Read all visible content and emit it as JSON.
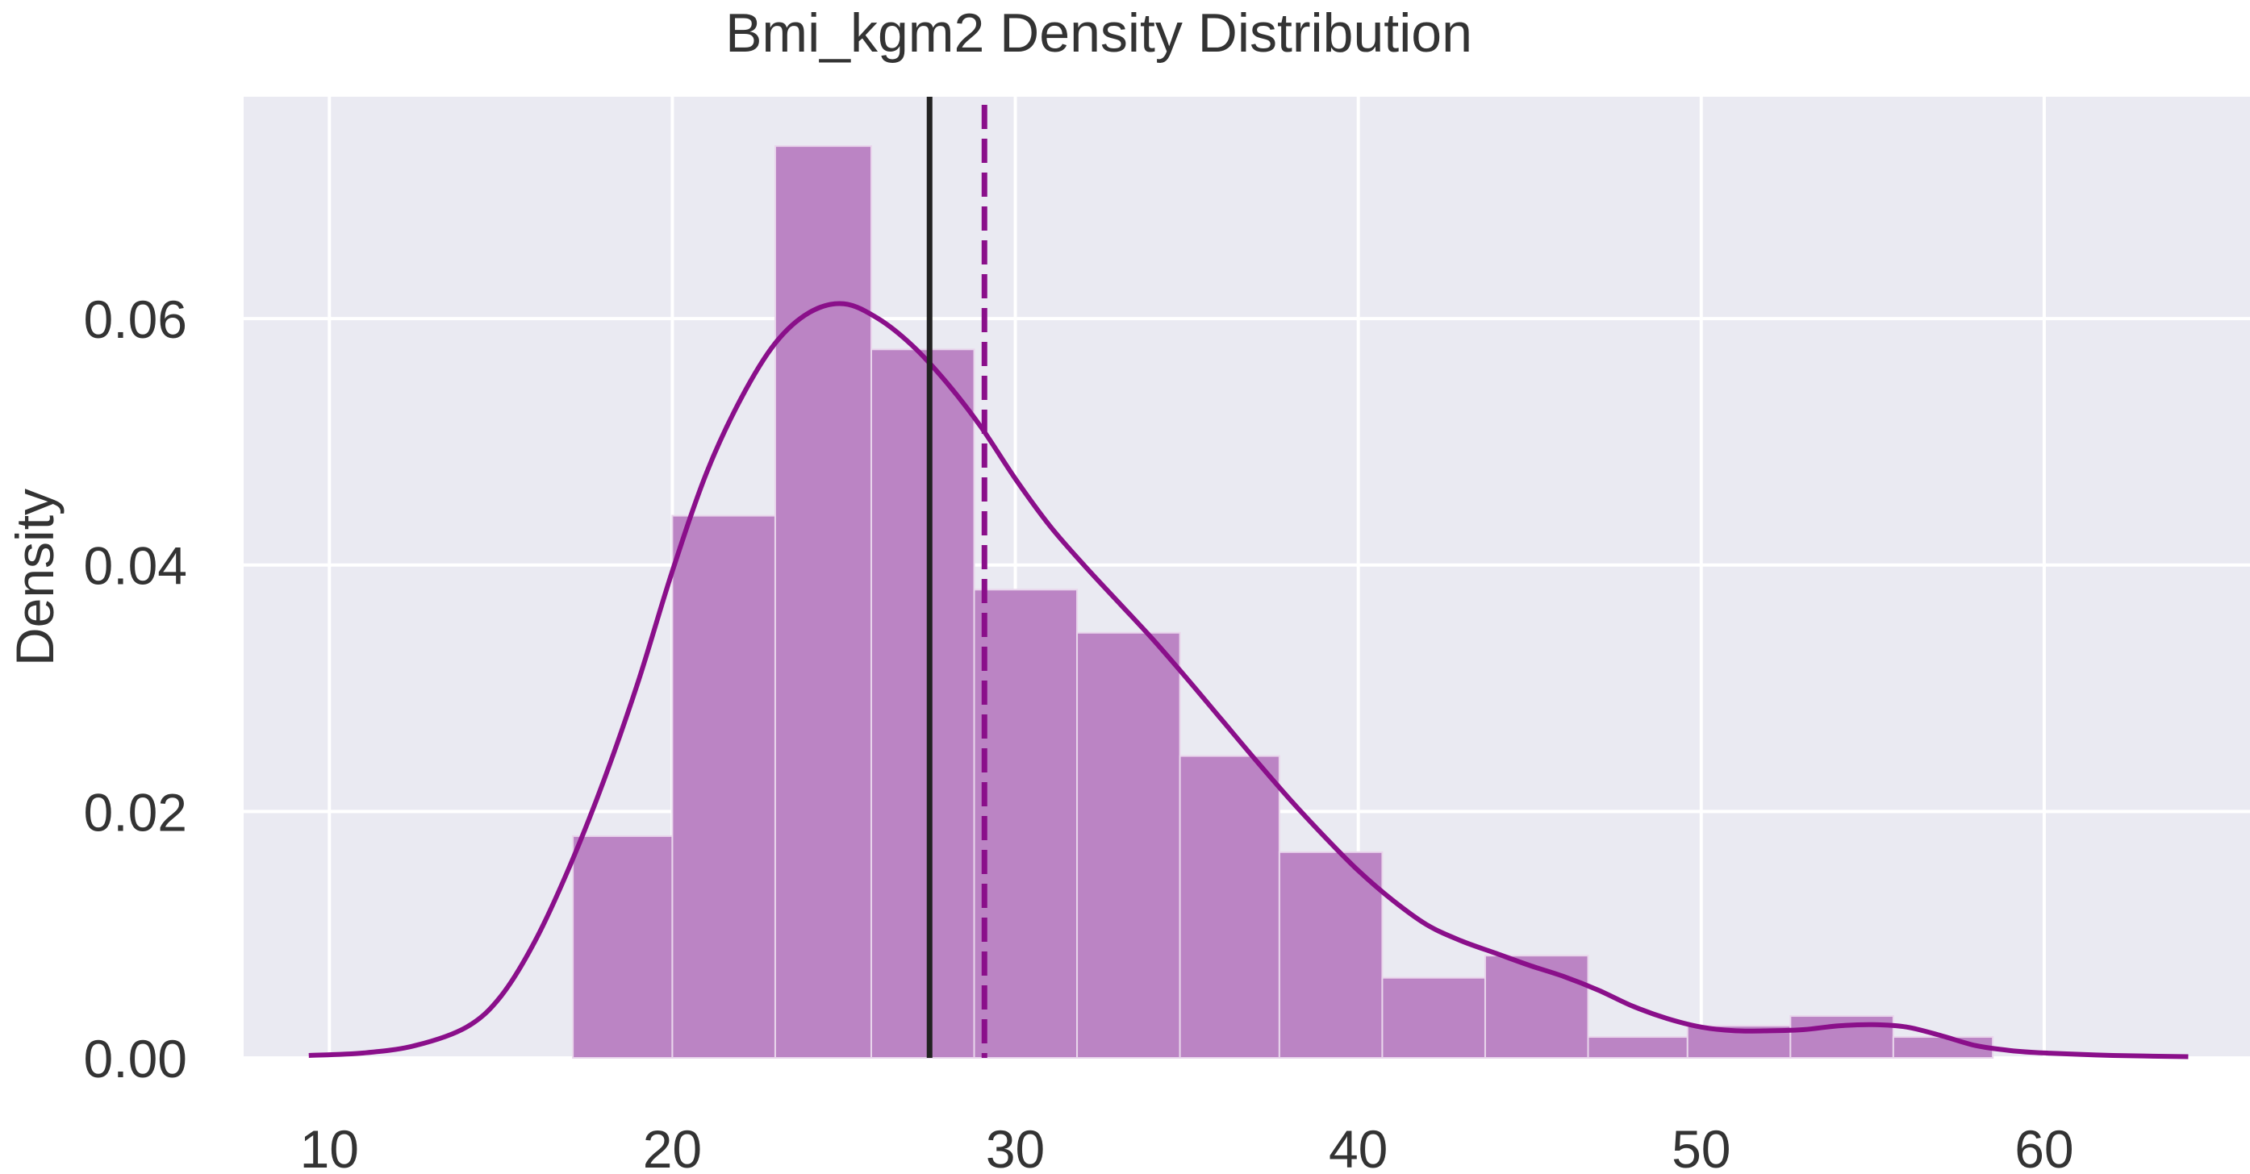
{
  "chart_data": {
    "type": "bar",
    "title": "Bmi_kgm2 Density Distribution",
    "xlabel": "",
    "ylabel": "Density",
    "xlim": [
      7.5,
      66
    ],
    "ylim": [
      0,
      0.078
    ],
    "xticks": [
      10,
      20,
      30,
      40,
      50,
      60
    ],
    "xtick_labels": [
      "10",
      "20",
      "30",
      "40",
      "50",
      "60"
    ],
    "yticks": [
      0.0,
      0.02,
      0.04,
      0.06
    ],
    "ytick_labels": [
      "0.00",
      "0.02",
      "0.04",
      "0.06"
    ],
    "grid": true,
    "background": "#eaeaf2",
    "grid_color": "#ffffff",
    "bar_color": "#bb84c4",
    "kde_color": "#8a0f8a",
    "mean_color": "#8a0f8a",
    "median_color": "#222222",
    "bins": [
      {
        "x0": 17.1,
        "x1": 20.0,
        "density": 0.018
      },
      {
        "x0": 20.0,
        "x1": 23.0,
        "density": 0.044
      },
      {
        "x0": 23.0,
        "x1": 25.8,
        "density": 0.074
      },
      {
        "x0": 25.8,
        "x1": 28.8,
        "density": 0.0575
      },
      {
        "x0": 28.8,
        "x1": 31.8,
        "density": 0.038
      },
      {
        "x0": 31.8,
        "x1": 34.8,
        "density": 0.0345
      },
      {
        "x0": 34.8,
        "x1": 37.7,
        "density": 0.0245
      },
      {
        "x0": 37.7,
        "x1": 40.7,
        "density": 0.0167
      },
      {
        "x0": 40.7,
        "x1": 43.7,
        "density": 0.0065
      },
      {
        "x0": 43.7,
        "x1": 46.7,
        "density": 0.0083
      },
      {
        "x0": 46.7,
        "x1": 49.6,
        "density": 0.0017
      },
      {
        "x0": 49.6,
        "x1": 52.6,
        "density": 0.0026
      },
      {
        "x0": 52.6,
        "x1": 55.6,
        "density": 0.0034
      },
      {
        "x0": 55.6,
        "x1": 58.5,
        "density": 0.0017
      }
    ],
    "kde": {
      "x": [
        9.4,
        11,
        12.5,
        14,
        15,
        16,
        17,
        18,
        19,
        20,
        21,
        22,
        23,
        24,
        25,
        26,
        27,
        28,
        29,
        30,
        31,
        32,
        33,
        34,
        35,
        36,
        37,
        38,
        39,
        40,
        41,
        42,
        43,
        44,
        45,
        46,
        47,
        48,
        49,
        50,
        51,
        52,
        53,
        54,
        55,
        56,
        57,
        58,
        59,
        60,
        62,
        64.2
      ],
      "y": [
        0.0002,
        0.0004,
        0.001,
        0.0025,
        0.005,
        0.0095,
        0.0155,
        0.0225,
        0.0305,
        0.0395,
        0.0475,
        0.0535,
        0.058,
        0.0605,
        0.0612,
        0.06,
        0.0578,
        0.0548,
        0.0512,
        0.047,
        0.0432,
        0.04,
        0.037,
        0.034,
        0.0308,
        0.0275,
        0.0242,
        0.021,
        0.018,
        0.0152,
        0.0128,
        0.0108,
        0.0095,
        0.0085,
        0.0075,
        0.0066,
        0.0055,
        0.0042,
        0.0032,
        0.0025,
        0.0022,
        0.0022,
        0.0023,
        0.0026,
        0.0027,
        0.0025,
        0.0018,
        0.001,
        0.0006,
        0.0004,
        0.0002,
        0.0001
      ]
    },
    "median": 27.5,
    "mean": 29.1
  }
}
